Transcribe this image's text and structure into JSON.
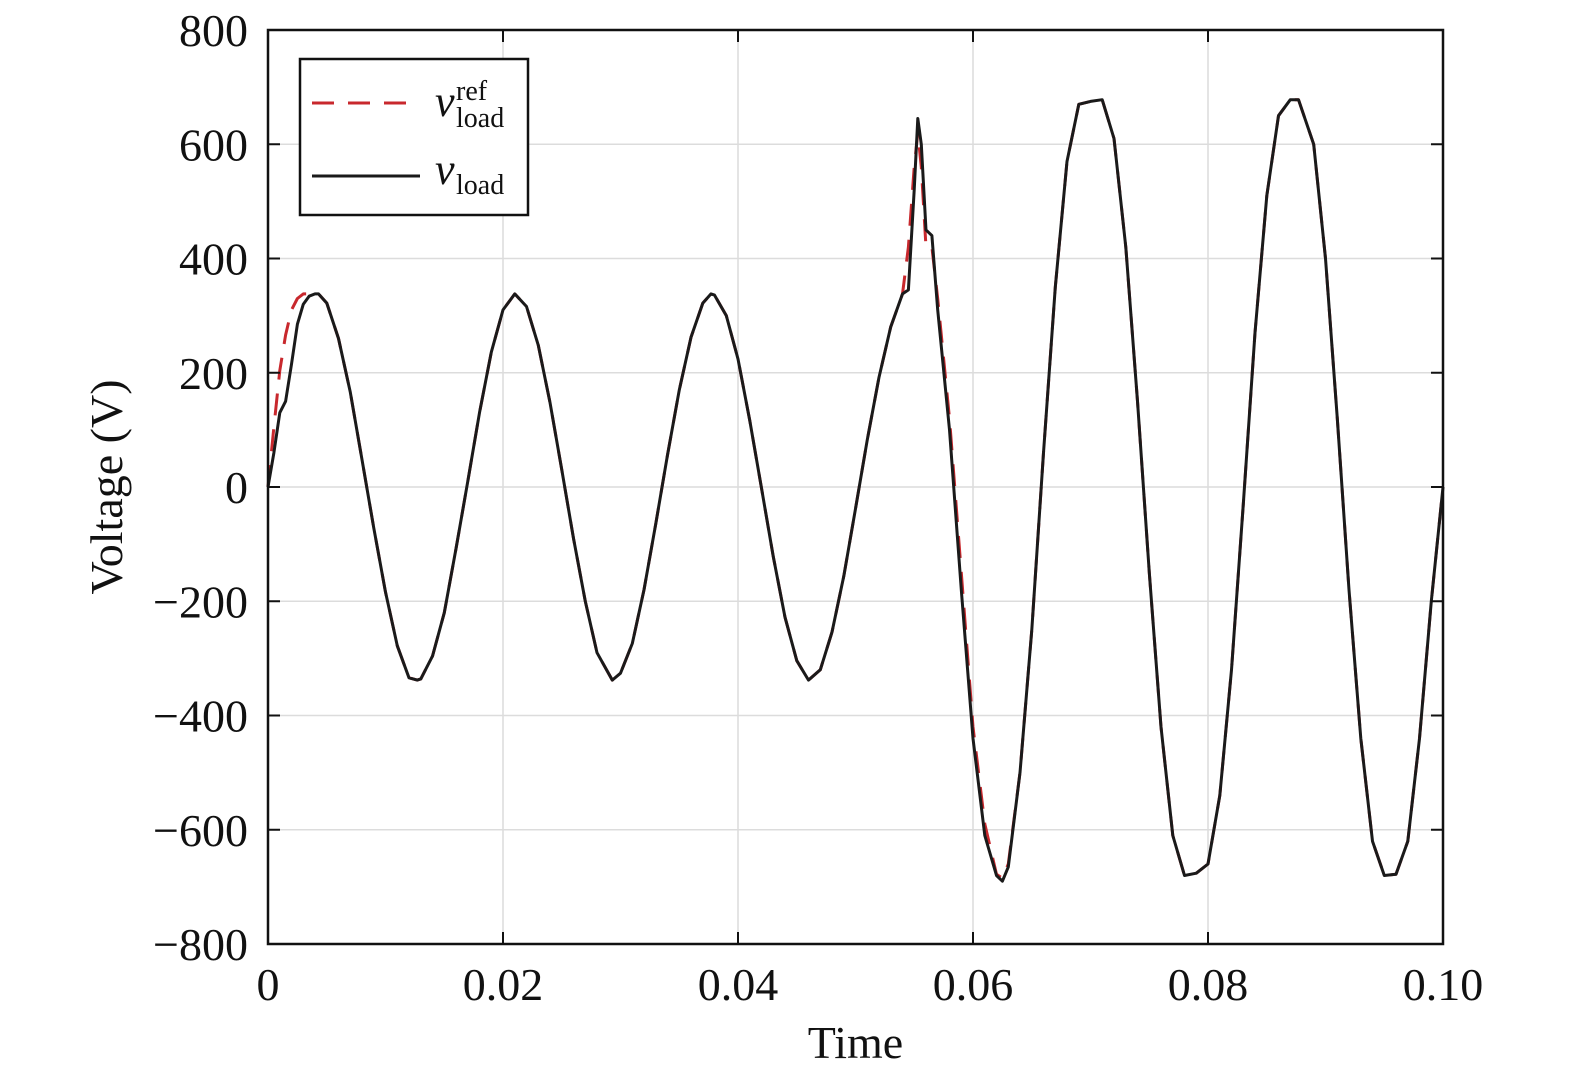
{
  "chart_data": {
    "type": "line",
    "title": "",
    "xlabel": "Time",
    "ylabel": "Voltage (V)",
    "xlim": [
      0,
      0.1
    ],
    "ylim": [
      -800,
      800
    ],
    "xticks": [
      0,
      0.02,
      0.04,
      0.06,
      0.08,
      0.1
    ],
    "xtick_labels": [
      "0",
      "0.02",
      "0.04",
      "0.06",
      "0.08",
      "0.10"
    ],
    "yticks": [
      800,
      600,
      400,
      200,
      0,
      -200,
      -400,
      -600,
      -800
    ],
    "ytick_labels": [
      "800",
      "600",
      "400",
      "200",
      "0",
      "−200",
      "−400",
      "−600",
      "−800"
    ],
    "grid": true,
    "legend_position": "top-left",
    "series": [
      {
        "name": "v_load^ref",
        "legend_main": "v",
        "legend_sub": "load",
        "legend_sup": "ref",
        "color": "#c8282d",
        "dash": "dashed",
        "x": [
          0,
          0.0005,
          0.001,
          0.0015,
          0.002,
          0.0025,
          0.003,
          0.0035,
          0.004,
          0.0043,
          0.005,
          0.006,
          0.007,
          0.008,
          0.009,
          0.01,
          0.011,
          0.012,
          0.0127,
          0.013,
          0.014,
          0.015,
          0.016,
          0.017,
          0.018,
          0.019,
          0.02,
          0.021,
          0.022,
          0.023,
          0.024,
          0.025,
          0.026,
          0.027,
          0.028,
          0.0293,
          0.03,
          0.031,
          0.032,
          0.033,
          0.034,
          0.035,
          0.036,
          0.037,
          0.0377,
          0.038,
          0.039,
          0.04,
          0.041,
          0.042,
          0.043,
          0.044,
          0.045,
          0.046,
          0.047,
          0.048,
          0.049,
          0.05,
          0.051,
          0.052,
          0.053,
          0.054,
          0.0545,
          0.055,
          0.0553,
          0.0556,
          0.056,
          0.0565,
          0.057,
          0.058,
          0.059,
          0.06,
          0.061,
          0.062,
          0.0625,
          0.063,
          0.064,
          0.065,
          0.066,
          0.067,
          0.068,
          0.069,
          0.07,
          0.071,
          0.072,
          0.073,
          0.074,
          0.075,
          0.076,
          0.077,
          0.078,
          0.079,
          0.08,
          0.081,
          0.082,
          0.083,
          0.084,
          0.085,
          0.086,
          0.087,
          0.0877,
          0.089,
          0.09,
          0.091,
          0.092,
          0.093,
          0.094,
          0.095,
          0.096,
          0.097,
          0.098,
          0.099,
          0.1
        ],
        "y": [
          0,
          105,
          204,
          266,
          310,
          330,
          338,
          338,
          336,
          338,
          322,
          260,
          166,
          48,
          -72,
          -184,
          -278,
          -334,
          -338,
          -336,
          -296,
          -220,
          -108,
          10,
          130,
          236,
          310,
          338,
          316,
          248,
          148,
          30,
          -90,
          -200,
          -290,
          -338,
          -326,
          -274,
          -180,
          -64,
          56,
          170,
          262,
          322,
          338,
          336,
          300,
          224,
          116,
          -2,
          -122,
          -228,
          -304,
          -338,
          -320,
          -254,
          -156,
          -38,
          82,
          192,
          280,
          338,
          420,
          560,
          620,
          560,
          420,
          420,
          330,
          120,
          -150,
          -420,
          -590,
          -678,
          -685,
          -660,
          -500,
          -250,
          60,
          350,
          570,
          670,
          675,
          678,
          610,
          420,
          150,
          -150,
          -420,
          -610,
          -680,
          -676,
          -660,
          -540,
          -320,
          -30,
          270,
          510,
          650,
          678,
          678,
          600,
          400,
          120,
          -180,
          -440,
          -620,
          -680,
          -678,
          -620,
          -440,
          -200,
          0
        ]
      },
      {
        "name": "v_load",
        "legend_main": "v",
        "legend_sub": "load",
        "legend_sup": "",
        "color": "#1a1a1a",
        "dash": "solid",
        "x": [
          0,
          0.0005,
          0.001,
          0.0015,
          0.002,
          0.0025,
          0.003,
          0.0035,
          0.004,
          0.0043,
          0.005,
          0.006,
          0.007,
          0.008,
          0.009,
          0.01,
          0.011,
          0.012,
          0.0127,
          0.013,
          0.014,
          0.015,
          0.016,
          0.017,
          0.018,
          0.019,
          0.02,
          0.021,
          0.022,
          0.023,
          0.024,
          0.025,
          0.026,
          0.027,
          0.028,
          0.0293,
          0.03,
          0.031,
          0.032,
          0.033,
          0.034,
          0.035,
          0.036,
          0.037,
          0.0377,
          0.038,
          0.039,
          0.04,
          0.041,
          0.042,
          0.043,
          0.044,
          0.045,
          0.046,
          0.047,
          0.048,
          0.049,
          0.05,
          0.051,
          0.052,
          0.053,
          0.054,
          0.0545,
          0.055,
          0.0553,
          0.0556,
          0.056,
          0.0565,
          0.057,
          0.058,
          0.059,
          0.06,
          0.061,
          0.062,
          0.0625,
          0.063,
          0.064,
          0.065,
          0.066,
          0.067,
          0.068,
          0.069,
          0.07,
          0.071,
          0.072,
          0.073,
          0.074,
          0.075,
          0.076,
          0.077,
          0.078,
          0.079,
          0.08,
          0.081,
          0.082,
          0.083,
          0.084,
          0.085,
          0.086,
          0.087,
          0.0877,
          0.089,
          0.09,
          0.091,
          0.092,
          0.093,
          0.094,
          0.095,
          0.096,
          0.097,
          0.098,
          0.099,
          0.1
        ],
        "y": [
          0,
          60,
          130,
          150,
          215,
          285,
          320,
          334,
          338,
          338,
          322,
          260,
          166,
          48,
          -72,
          -184,
          -278,
          -334,
          -338,
          -336,
          -296,
          -220,
          -108,
          10,
          130,
          236,
          310,
          338,
          316,
          248,
          148,
          30,
          -90,
          -200,
          -290,
          -338,
          -326,
          -274,
          -180,
          -64,
          56,
          170,
          262,
          322,
          338,
          336,
          300,
          224,
          116,
          -2,
          -122,
          -228,
          -304,
          -338,
          -320,
          -254,
          -156,
          -38,
          82,
          192,
          280,
          338,
          345,
          520,
          645,
          600,
          450,
          440,
          310,
          100,
          -180,
          -440,
          -610,
          -680,
          -690,
          -665,
          -500,
          -250,
          60,
          350,
          570,
          670,
          675,
          678,
          610,
          420,
          150,
          -150,
          -420,
          -610,
          -680,
          -676,
          -660,
          -540,
          -320,
          -30,
          270,
          510,
          650,
          678,
          678,
          600,
          400,
          120,
          -180,
          -440,
          -620,
          -680,
          -678,
          -620,
          -440,
          -200,
          0
        ]
      }
    ]
  }
}
